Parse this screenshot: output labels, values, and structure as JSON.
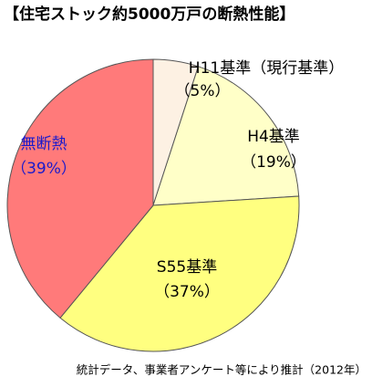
{
  "chart_data": {
    "type": "pie",
    "title": "【住宅ストック約5000万戸の断熱性能】",
    "categories": [
      "H11基準（現行基準）",
      "H4基準",
      "S55基準",
      "無断熱"
    ],
    "values": [
      5,
      19,
      37,
      39
    ],
    "value_labels": [
      "（5%）",
      "（19%）",
      "（37%）",
      "（39%）"
    ],
    "colors": [
      "#fdf1e3",
      "#ffffc8",
      "#ffff80",
      "#ff7a7a"
    ],
    "start_angle": 0,
    "direction": "clockwise",
    "note": "統計データ、事業者アンケート等により推計（2012年）"
  }
}
